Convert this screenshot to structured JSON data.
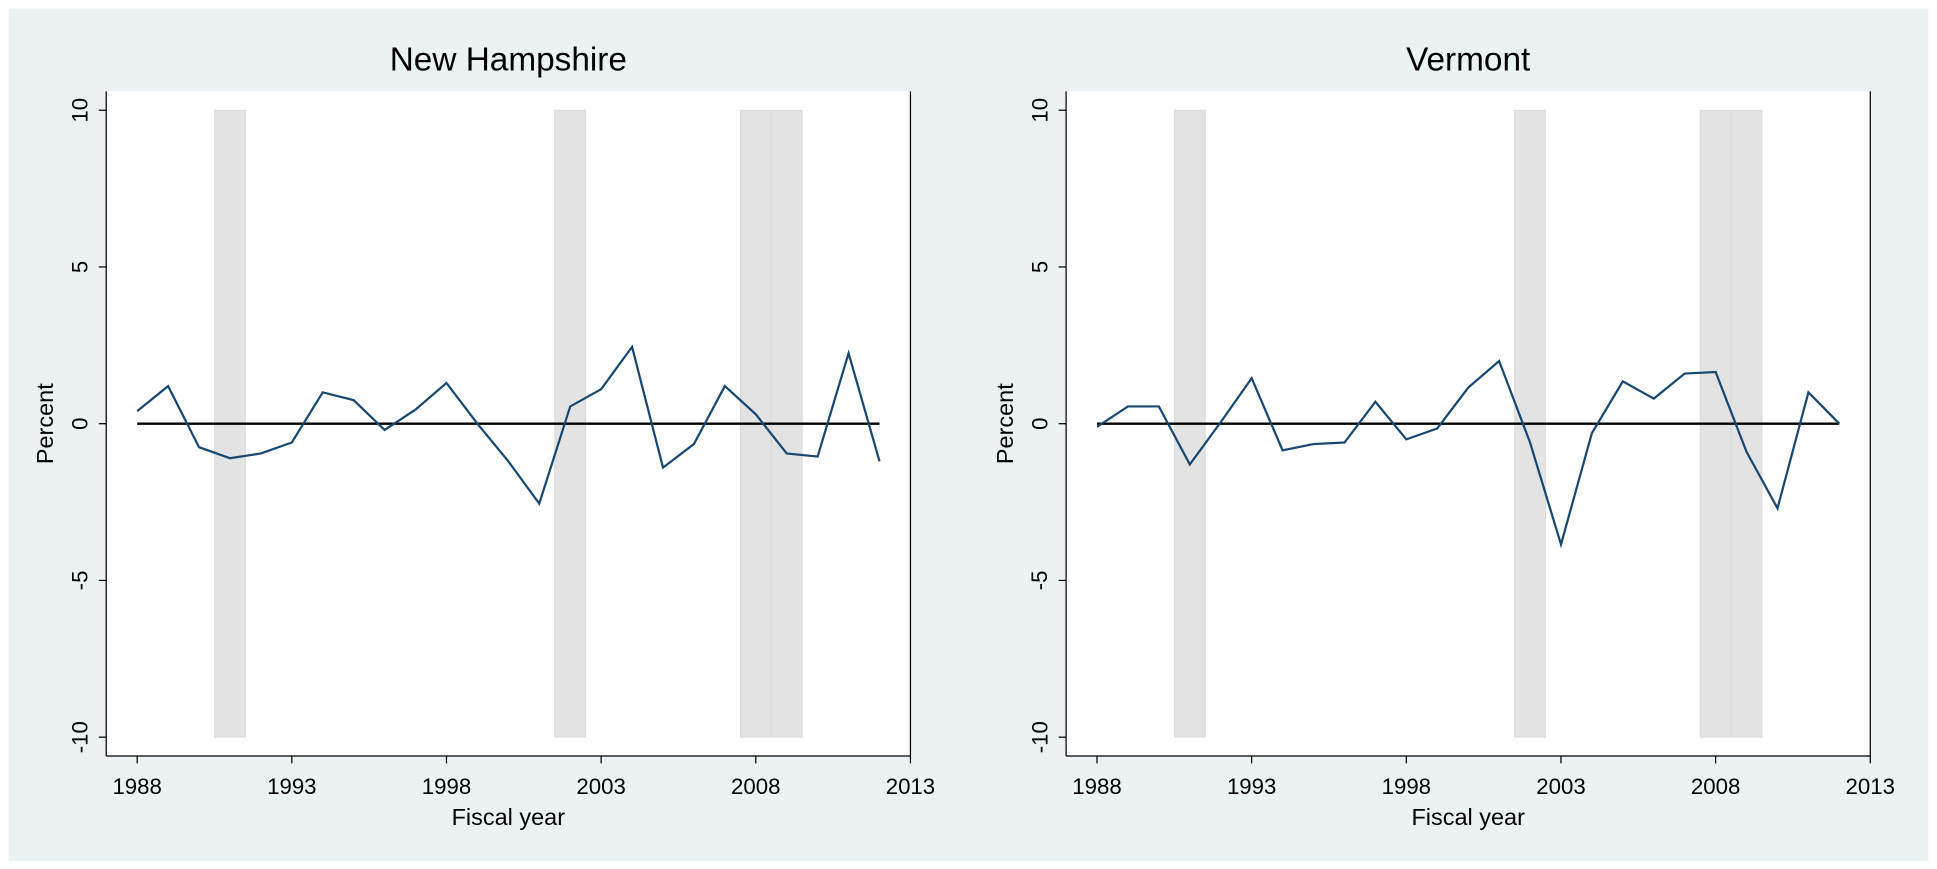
{
  "chart_data": [
    {
      "type": "line",
      "title": "New Hampshire",
      "xlabel": "Fiscal year",
      "ylabel": "Percent",
      "x": [
        1988,
        1989,
        1990,
        1991,
        1992,
        1993,
        1994,
        1995,
        1996,
        1997,
        1998,
        1999,
        2000,
        2001,
        2002,
        2003,
        2004,
        2005,
        2006,
        2007,
        2008,
        2009,
        2010,
        2011,
        2012
      ],
      "series": [
        {
          "color": "#1a476f",
          "values": [
            0.4,
            1.2,
            -0.75,
            -1.1,
            -0.95,
            -0.6,
            1.0,
            0.75,
            -0.2,
            0.45,
            1.3,
            0.0,
            -1.2,
            -2.55,
            0.55,
            1.1,
            2.45,
            -1.4,
            -0.65,
            1.2,
            0.3,
            -0.95,
            -1.05,
            2.25,
            -1.2
          ]
        }
      ],
      "xlim": [
        1987,
        2013
      ],
      "ylim": [
        -10.6,
        10.6
      ],
      "xticks": [
        1988,
        1993,
        1998,
        2003,
        2008,
        2013
      ],
      "yticks": [
        -10,
        -5,
        0,
        5,
        10
      ],
      "bands": [
        [
          1990.5,
          1991.5
        ],
        [
          2001.5,
          2002.5
        ],
        [
          2007.5,
          2008.5
        ],
        [
          2008.5,
          2009.5
        ]
      ],
      "band_color": "#e3e3e3",
      "hline": 0
    },
    {
      "type": "line",
      "title": "Vermont",
      "xlabel": "Fiscal year",
      "ylabel": "Percent",
      "x": [
        1988,
        1989,
        1990,
        1991,
        1992,
        1993,
        1994,
        1995,
        1996,
        1997,
        1998,
        1999,
        2000,
        2001,
        2002,
        2003,
        2004,
        2005,
        2006,
        2007,
        2008,
        2009,
        2010,
        2011,
        2012
      ],
      "series": [
        {
          "color": "#1a476f",
          "values": [
            -0.1,
            0.55,
            0.55,
            -1.3,
            0.05,
            1.45,
            -0.85,
            -0.65,
            -0.6,
            0.7,
            -0.5,
            -0.15,
            1.15,
            2.0,
            -0.6,
            -3.85,
            -0.3,
            1.35,
            0.8,
            1.6,
            1.65,
            -0.9,
            -2.7,
            1.0,
            0.0
          ]
        }
      ],
      "xlim": [
        1987,
        2013
      ],
      "ylim": [
        -10.6,
        10.6
      ],
      "xticks": [
        1988,
        1993,
        1998,
        2003,
        2008,
        2013
      ],
      "yticks": [
        -10,
        -5,
        0,
        5,
        10
      ],
      "bands": [
        [
          1990.5,
          1991.5
        ],
        [
          2001.5,
          2002.5
        ],
        [
          2007.5,
          2008.5
        ],
        [
          2008.5,
          2009.5
        ]
      ],
      "band_color": "#e3e3e3",
      "hline": 0
    }
  ]
}
